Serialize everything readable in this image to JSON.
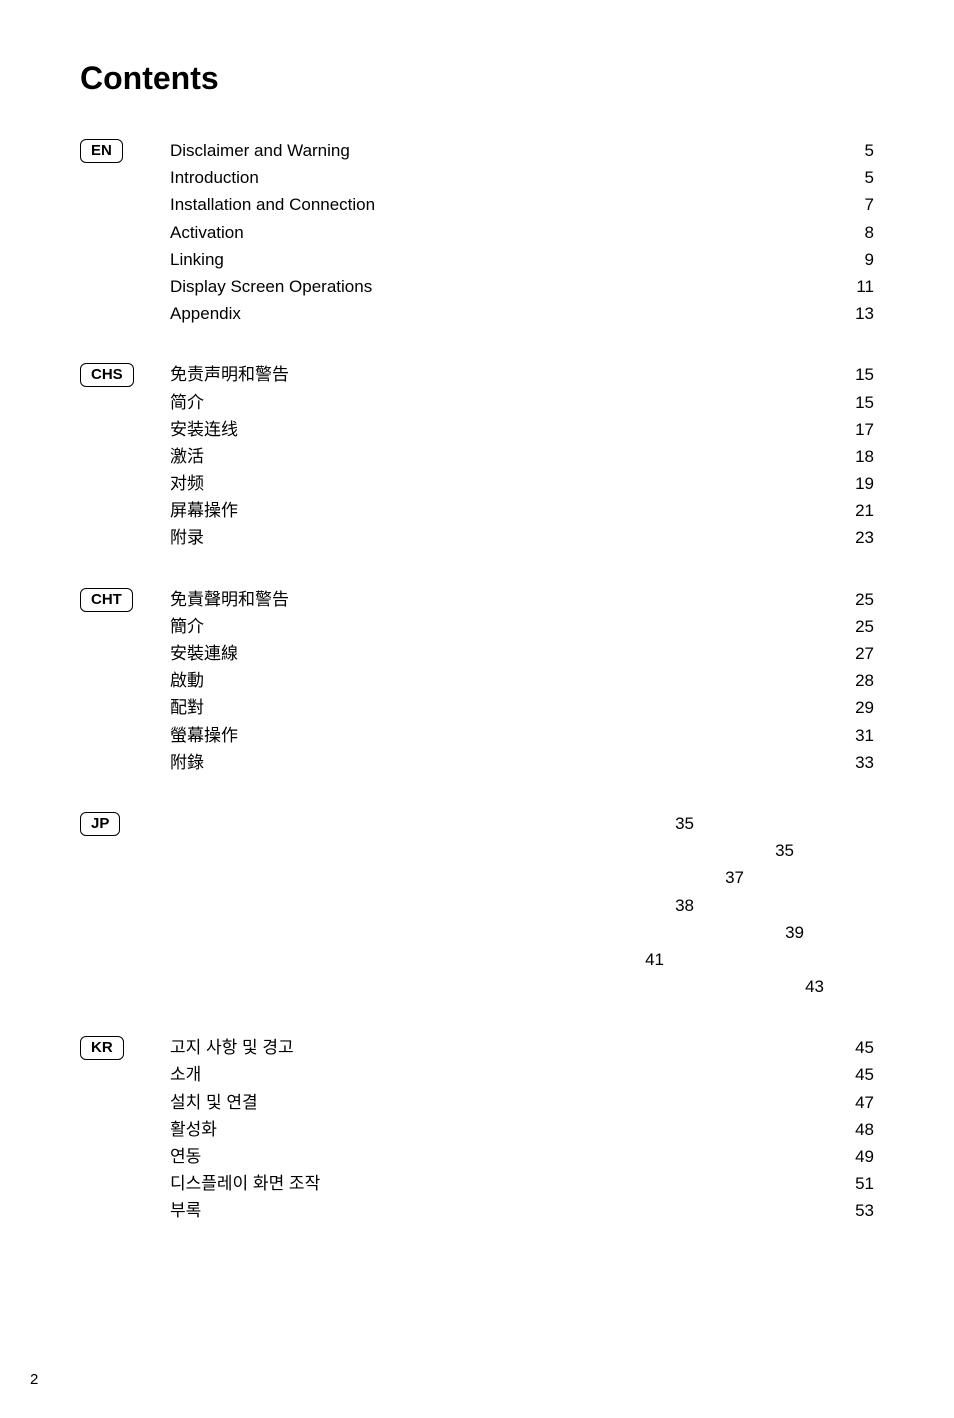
{
  "title": "Contents",
  "page_number": "2",
  "colors": {
    "text": "#000000",
    "background": "#ffffff",
    "badge_border": "#000000"
  },
  "typography": {
    "title_fontsize": 32,
    "title_weight": 700,
    "body_fontsize": 17,
    "badge_fontsize": 15,
    "page_number_fontsize": 15
  },
  "sections": [
    {
      "badge": "EN",
      "entries": [
        {
          "label": "Disclaimer and Warning",
          "page": "5"
        },
        {
          "label": "Introduction",
          "page": "5"
        },
        {
          "label": "Installation and Connection",
          "page": "7"
        },
        {
          "label": "Activation",
          "page": "8"
        },
        {
          "label": "Linking",
          "page": "9"
        },
        {
          "label": "Display Screen Operations",
          "page": "11"
        },
        {
          "label": "Appendix",
          "page": "13"
        }
      ]
    },
    {
      "badge": "CHS",
      "entries": [
        {
          "label": "免责声明和警告",
          "page": "15"
        },
        {
          "label": "简介",
          "page": "15"
        },
        {
          "label": "安装连线",
          "page": "17"
        },
        {
          "label": "激活",
          "page": "18"
        },
        {
          "label": "对频",
          "page": "19"
        },
        {
          "label": "屏幕操作",
          "page": "21"
        },
        {
          "label": "附录",
          "page": "23"
        }
      ]
    },
    {
      "badge": "CHT",
      "entries": [
        {
          "label": "免責聲明和警告",
          "page": "25"
        },
        {
          "label": "簡介",
          "page": "25"
        },
        {
          "label": "安裝連線",
          "page": "27"
        },
        {
          "label": "啟動",
          "page": "28"
        },
        {
          "label": "配對",
          "page": "29"
        },
        {
          "label": "螢幕操作",
          "page": "31"
        },
        {
          "label": "附錄",
          "page": "33"
        }
      ]
    },
    {
      "badge": "JP",
      "entries": [
        {
          "label": "",
          "page": "35"
        },
        {
          "label": "",
          "page": "35"
        },
        {
          "label": "",
          "page": "37"
        },
        {
          "label": "",
          "page": "38"
        },
        {
          "label": "",
          "page": "39"
        },
        {
          "label": "",
          "page": "41"
        },
        {
          "label": "",
          "page": "43"
        }
      ],
      "page_offsets": [
        0,
        100,
        50,
        0,
        110,
        -30,
        130
      ]
    },
    {
      "badge": "KR",
      "entries": [
        {
          "label": "고지 사항 및 경고",
          "page": "45"
        },
        {
          "label": "소개",
          "page": "45"
        },
        {
          "label": "설치 및 연결",
          "page": "47"
        },
        {
          "label": "활성화",
          "page": "48"
        },
        {
          "label": "연동",
          "page": "49"
        },
        {
          "label": "디스플레이 화면 조작",
          "page": "51"
        },
        {
          "label": "부록",
          "page": "53"
        }
      ]
    }
  ]
}
